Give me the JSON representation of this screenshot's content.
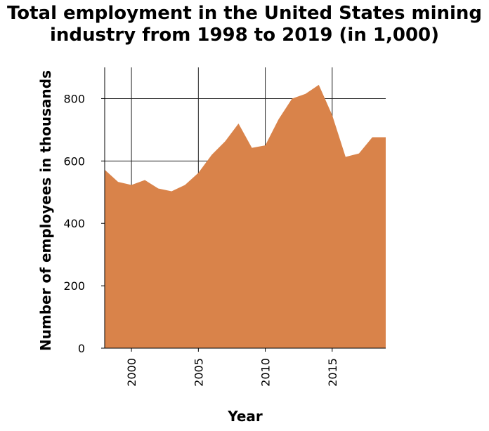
{
  "chart_data": {
    "type": "area",
    "title_line1": "Total employment in the United States mining",
    "title_line2": "industry from 1998 to 2019 (in 1,000)",
    "xlabel": "Year",
    "ylabel": "Number of employees in thousands",
    "x": [
      1998,
      1999,
      2000,
      2001,
      2002,
      2003,
      2004,
      2005,
      2006,
      2007,
      2008,
      2009,
      2010,
      2011,
      2012,
      2013,
      2014,
      2015,
      2016,
      2017,
      2018,
      2019
    ],
    "values": [
      572,
      533,
      523,
      539,
      512,
      503,
      523,
      562,
      620,
      663,
      720,
      642,
      650,
      734,
      800,
      815,
      844,
      747,
      613,
      624,
      676,
      676
    ],
    "xlim": [
      1998,
      2019
    ],
    "ylim": [
      0,
      900
    ],
    "xticks": [
      "2000",
      "2005",
      "2010",
      "2015"
    ],
    "yticks": [
      "0",
      "200",
      "400",
      "600",
      "800"
    ],
    "grid": true,
    "fill_color": "#d9834a"
  }
}
